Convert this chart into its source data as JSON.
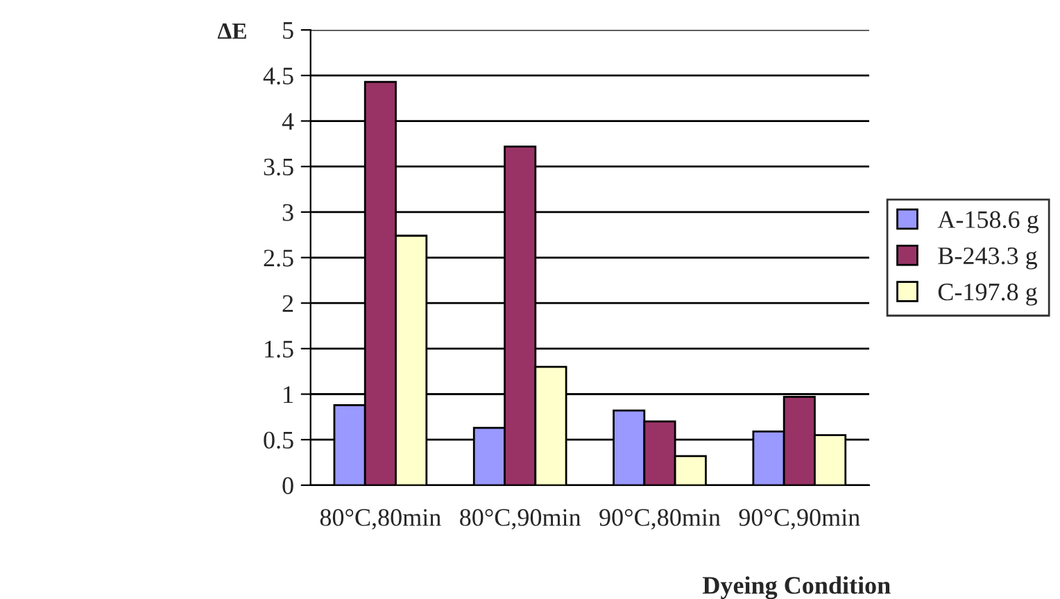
{
  "chart_data": {
    "type": "bar",
    "ylabel": "ΔE",
    "xlabel": "Dyeing Condition",
    "categories": [
      "80°C,80min",
      "80°C,90min",
      "90°C,80min",
      "90°C,90min"
    ],
    "series": [
      {
        "name": "A-158.6 g",
        "color": "#9999ff",
        "values": [
          0.88,
          0.63,
          0.82,
          0.59
        ]
      },
      {
        "name": "B-243.3 g",
        "color": "#993366",
        "values": [
          4.43,
          3.72,
          0.7,
          0.97
        ]
      },
      {
        "name": "C-197.8 g",
        "color": "#ffffcc",
        "values": [
          2.74,
          1.3,
          0.32,
          0.55
        ]
      }
    ],
    "ylim": [
      0,
      5
    ],
    "yticks": [
      0,
      0.5,
      1,
      1.5,
      2,
      2.5,
      3,
      3.5,
      4,
      4.5,
      5
    ],
    "grid": "y",
    "legend": "right"
  }
}
